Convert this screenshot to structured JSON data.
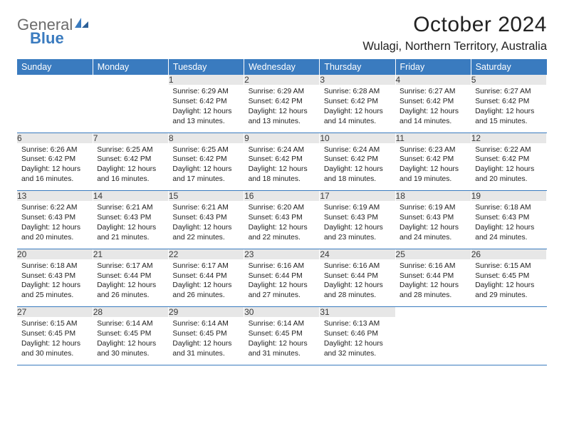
{
  "brand": {
    "word1": "General",
    "word2": "Blue"
  },
  "title": "October 2024",
  "location": "Wulagi, Northern Territory, Australia",
  "colors": {
    "header_bg": "#3a7bbf",
    "header_fg": "#ffffff",
    "daynum_bg": "#e7e7e7",
    "rule": "#3a7bbf",
    "logo_gray": "#6b6b6b",
    "logo_blue": "#3a7bbf"
  },
  "days": [
    "Sunday",
    "Monday",
    "Tuesday",
    "Wednesday",
    "Thursday",
    "Friday",
    "Saturday"
  ],
  "weeks": [
    [
      null,
      null,
      {
        "n": "1",
        "sunrise": "6:29 AM",
        "sunset": "6:42 PM",
        "daylight": "12 hours and 13 minutes."
      },
      {
        "n": "2",
        "sunrise": "6:29 AM",
        "sunset": "6:42 PM",
        "daylight": "12 hours and 13 minutes."
      },
      {
        "n": "3",
        "sunrise": "6:28 AM",
        "sunset": "6:42 PM",
        "daylight": "12 hours and 14 minutes."
      },
      {
        "n": "4",
        "sunrise": "6:27 AM",
        "sunset": "6:42 PM",
        "daylight": "12 hours and 14 minutes."
      },
      {
        "n": "5",
        "sunrise": "6:27 AM",
        "sunset": "6:42 PM",
        "daylight": "12 hours and 15 minutes."
      }
    ],
    [
      {
        "n": "6",
        "sunrise": "6:26 AM",
        "sunset": "6:42 PM",
        "daylight": "12 hours and 16 minutes."
      },
      {
        "n": "7",
        "sunrise": "6:25 AM",
        "sunset": "6:42 PM",
        "daylight": "12 hours and 16 minutes."
      },
      {
        "n": "8",
        "sunrise": "6:25 AM",
        "sunset": "6:42 PM",
        "daylight": "12 hours and 17 minutes."
      },
      {
        "n": "9",
        "sunrise": "6:24 AM",
        "sunset": "6:42 PM",
        "daylight": "12 hours and 18 minutes."
      },
      {
        "n": "10",
        "sunrise": "6:24 AM",
        "sunset": "6:42 PM",
        "daylight": "12 hours and 18 minutes."
      },
      {
        "n": "11",
        "sunrise": "6:23 AM",
        "sunset": "6:42 PM",
        "daylight": "12 hours and 19 minutes."
      },
      {
        "n": "12",
        "sunrise": "6:22 AM",
        "sunset": "6:42 PM",
        "daylight": "12 hours and 20 minutes."
      }
    ],
    [
      {
        "n": "13",
        "sunrise": "6:22 AM",
        "sunset": "6:43 PM",
        "daylight": "12 hours and 20 minutes."
      },
      {
        "n": "14",
        "sunrise": "6:21 AM",
        "sunset": "6:43 PM",
        "daylight": "12 hours and 21 minutes."
      },
      {
        "n": "15",
        "sunrise": "6:21 AM",
        "sunset": "6:43 PM",
        "daylight": "12 hours and 22 minutes."
      },
      {
        "n": "16",
        "sunrise": "6:20 AM",
        "sunset": "6:43 PM",
        "daylight": "12 hours and 22 minutes."
      },
      {
        "n": "17",
        "sunrise": "6:19 AM",
        "sunset": "6:43 PM",
        "daylight": "12 hours and 23 minutes."
      },
      {
        "n": "18",
        "sunrise": "6:19 AM",
        "sunset": "6:43 PM",
        "daylight": "12 hours and 24 minutes."
      },
      {
        "n": "19",
        "sunrise": "6:18 AM",
        "sunset": "6:43 PM",
        "daylight": "12 hours and 24 minutes."
      }
    ],
    [
      {
        "n": "20",
        "sunrise": "6:18 AM",
        "sunset": "6:43 PM",
        "daylight": "12 hours and 25 minutes."
      },
      {
        "n": "21",
        "sunrise": "6:17 AM",
        "sunset": "6:44 PM",
        "daylight": "12 hours and 26 minutes."
      },
      {
        "n": "22",
        "sunrise": "6:17 AM",
        "sunset": "6:44 PM",
        "daylight": "12 hours and 26 minutes."
      },
      {
        "n": "23",
        "sunrise": "6:16 AM",
        "sunset": "6:44 PM",
        "daylight": "12 hours and 27 minutes."
      },
      {
        "n": "24",
        "sunrise": "6:16 AM",
        "sunset": "6:44 PM",
        "daylight": "12 hours and 28 minutes."
      },
      {
        "n": "25",
        "sunrise": "6:16 AM",
        "sunset": "6:44 PM",
        "daylight": "12 hours and 28 minutes."
      },
      {
        "n": "26",
        "sunrise": "6:15 AM",
        "sunset": "6:45 PM",
        "daylight": "12 hours and 29 minutes."
      }
    ],
    [
      {
        "n": "27",
        "sunrise": "6:15 AM",
        "sunset": "6:45 PM",
        "daylight": "12 hours and 30 minutes."
      },
      {
        "n": "28",
        "sunrise": "6:14 AM",
        "sunset": "6:45 PM",
        "daylight": "12 hours and 30 minutes."
      },
      {
        "n": "29",
        "sunrise": "6:14 AM",
        "sunset": "6:45 PM",
        "daylight": "12 hours and 31 minutes."
      },
      {
        "n": "30",
        "sunrise": "6:14 AM",
        "sunset": "6:45 PM",
        "daylight": "12 hours and 31 minutes."
      },
      {
        "n": "31",
        "sunrise": "6:13 AM",
        "sunset": "6:46 PM",
        "daylight": "12 hours and 32 minutes."
      },
      null,
      null
    ]
  ],
  "labels": {
    "sunrise": "Sunrise:",
    "sunset": "Sunset:",
    "daylight": "Daylight:"
  }
}
